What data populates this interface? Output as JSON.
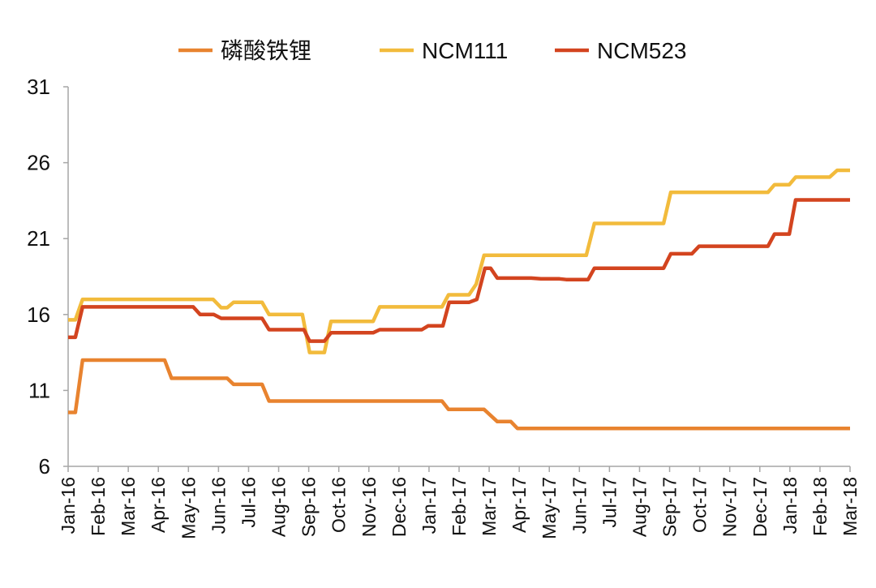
{
  "chart_data": {
    "type": "line",
    "title": "",
    "xlabel": "",
    "ylabel": "",
    "ylim": [
      6,
      31
    ],
    "yticks": [
      6,
      11,
      16,
      21,
      26,
      31
    ],
    "categories": [
      "Jan-16",
      "Feb-16",
      "Mar-16",
      "Apr-16",
      "May-16",
      "Jun-16",
      "Jul-16",
      "Aug-16",
      "Sep-16",
      "Oct-16",
      "Nov-16",
      "Dec-16",
      "Jan-17",
      "Feb-17",
      "Mar-17",
      "Apr-17",
      "May-17",
      "Jun-17",
      "Jul-17",
      "Aug-17",
      "Sep-17",
      "Oct-17",
      "Nov-17",
      "Dec-17",
      "Jan-18",
      "Feb-18",
      "Mar-18"
    ],
    "x_unit": "months since Jan-16",
    "grid": false,
    "legend_position": "top-center",
    "series": [
      {
        "name": "磷酸铁锂",
        "color": "#E8832F",
        "points": [
          [
            0,
            9.55
          ],
          [
            0.24,
            9.55
          ],
          [
            0.48,
            13.0
          ],
          [
            3.21,
            13.0
          ],
          [
            3.44,
            11.8
          ],
          [
            5.29,
            11.8
          ],
          [
            5.5,
            11.4
          ],
          [
            6.45,
            11.4
          ],
          [
            6.68,
            10.3
          ],
          [
            12.43,
            10.3
          ],
          [
            12.65,
            9.75
          ],
          [
            13.83,
            9.75
          ],
          [
            14.27,
            8.95
          ],
          [
            14.72,
            8.95
          ],
          [
            14.94,
            8.5
          ],
          [
            26,
            8.5
          ]
        ]
      },
      {
        "name": "NCM111",
        "color": "#F2BB3C",
        "points": [
          [
            0,
            15.65
          ],
          [
            0.24,
            15.65
          ],
          [
            0.48,
            17.0
          ],
          [
            4.82,
            17.0
          ],
          [
            5.09,
            16.45
          ],
          [
            5.29,
            16.45
          ],
          [
            5.5,
            16.8
          ],
          [
            6.45,
            16.8
          ],
          [
            6.68,
            16.0
          ],
          [
            7.79,
            16.0
          ],
          [
            8.03,
            13.5
          ],
          [
            8.52,
            13.5
          ],
          [
            8.74,
            15.55
          ],
          [
            10.14,
            15.55
          ],
          [
            10.36,
            16.5
          ],
          [
            12.43,
            16.5
          ],
          [
            12.65,
            17.3
          ],
          [
            13.33,
            17.3
          ],
          [
            13.57,
            18.0
          ],
          [
            13.83,
            19.9
          ],
          [
            17.23,
            19.9
          ],
          [
            17.5,
            22.0
          ],
          [
            19.8,
            22.0
          ],
          [
            20.04,
            24.05
          ],
          [
            23.27,
            24.05
          ],
          [
            23.49,
            24.55
          ],
          [
            23.98,
            24.55
          ],
          [
            24.19,
            25.05
          ],
          [
            25.32,
            25.05
          ],
          [
            25.57,
            25.5
          ],
          [
            26,
            25.5
          ]
        ]
      },
      {
        "name": "NCM523",
        "color": "#D3441F",
        "points": [
          [
            0,
            14.5
          ],
          [
            0.24,
            14.5
          ],
          [
            0.48,
            16.5
          ],
          [
            4.16,
            16.5
          ],
          [
            4.39,
            16.0
          ],
          [
            4.84,
            16.0
          ],
          [
            5.09,
            15.75
          ],
          [
            6.45,
            15.75
          ],
          [
            6.68,
            15.0
          ],
          [
            7.84,
            15.0
          ],
          [
            8.03,
            14.25
          ],
          [
            8.52,
            14.25
          ],
          [
            8.74,
            14.8
          ],
          [
            10.14,
            14.8
          ],
          [
            10.36,
            15.0
          ],
          [
            11.76,
            15.0
          ],
          [
            11.97,
            15.25
          ],
          [
            12.46,
            15.25
          ],
          [
            12.67,
            16.8
          ],
          [
            13.33,
            16.8
          ],
          [
            13.59,
            17.0
          ],
          [
            13.86,
            19.05
          ],
          [
            14.05,
            19.05
          ],
          [
            14.27,
            18.4
          ],
          [
            15.4,
            18.4
          ],
          [
            15.72,
            18.35
          ],
          [
            16.34,
            18.35
          ],
          [
            16.56,
            18.3
          ],
          [
            17.29,
            18.3
          ],
          [
            17.5,
            19.05
          ],
          [
            19.8,
            19.05
          ],
          [
            20.04,
            20.0
          ],
          [
            20.74,
            20.0
          ],
          [
            20.98,
            20.5
          ],
          [
            23.27,
            20.5
          ],
          [
            23.49,
            21.3
          ],
          [
            23.98,
            21.3
          ],
          [
            24.19,
            23.55
          ],
          [
            26,
            23.55
          ]
        ]
      }
    ]
  }
}
